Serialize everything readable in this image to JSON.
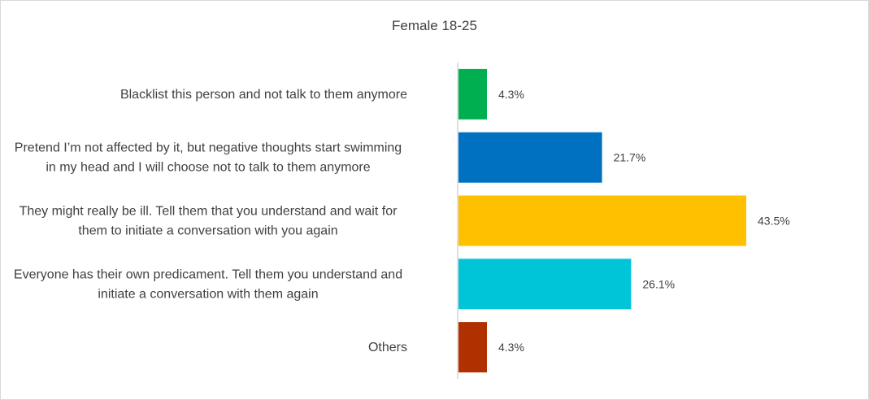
{
  "chart_data": {
    "type": "bar",
    "orientation": "horizontal",
    "title": "Female 18-25",
    "categories": [
      [
        "Blacklist this person and not talk to them anymore"
      ],
      [
        "Pretend I’m not affected by it, but negative thoughts start swimming",
        "in my head and I will choose not to talk to them anymore"
      ],
      [
        "They might really be ill. Tell them that you understand and wait for",
        "them to initiate a conversation with you again"
      ],
      [
        "Everyone has their own predicament. Tell them you understand and",
        "initiate a conversation with them again"
      ],
      [
        "Others"
      ]
    ],
    "values": [
      4.3,
      21.7,
      43.5,
      26.1,
      4.3
    ],
    "data_labels": [
      "4.3%",
      "21.7%",
      "43.5%",
      "26.1%",
      "4.3%"
    ],
    "colors": [
      "#00b050",
      "#0070c0",
      "#ffc000",
      "#00c5d8",
      "#b03000"
    ],
    "xlim": [
      0,
      50
    ],
    "grid": false,
    "legend": "none"
  }
}
